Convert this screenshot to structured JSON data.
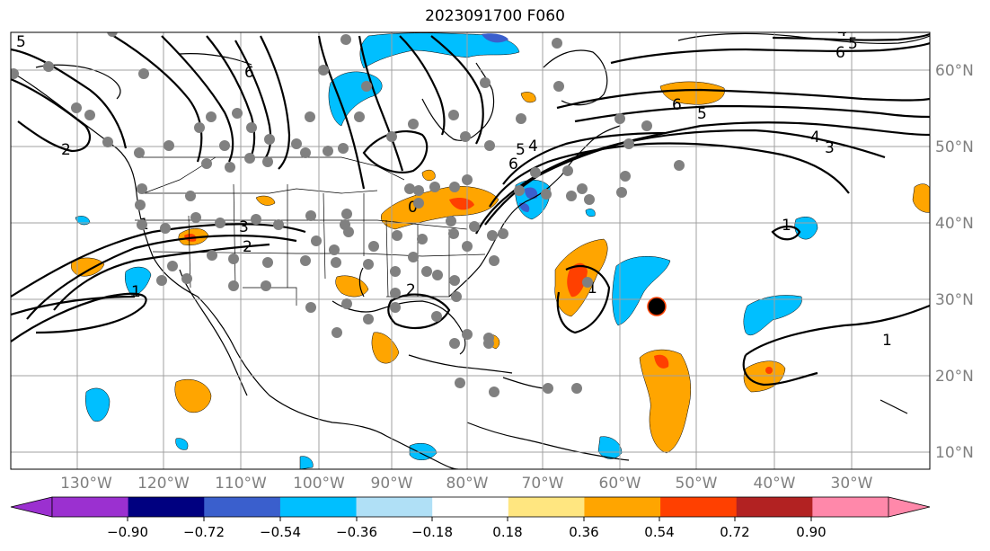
{
  "title": "2023091700 F060",
  "latitude_labels": [
    "60°N",
    "50°N",
    "40°N",
    "30°N",
    "20°N",
    "10°N"
  ],
  "longitude_labels": [
    "130°W",
    "120°W",
    "110°W",
    "100°W",
    "90°W",
    "80°W",
    "70°W",
    "60°W",
    "50°W",
    "40°W",
    "30°W"
  ],
  "colorbar": {
    "ticks": [
      "−0.90",
      "−0.72",
      "−0.54",
      "−0.36",
      "−0.18",
      "0.18",
      "0.36",
      "0.54",
      "0.72",
      "0.90"
    ],
    "colors": [
      "#9b30d0",
      "#000080",
      "#3a5fcd",
      "#00bfff",
      "#b0e0f6",
      "#ffffff",
      "#ffe680",
      "#ffa500",
      "#ff4000",
      "#b22222",
      "#ff88aa"
    ]
  },
  "contour_labels": [
    "5",
    "6",
    "2",
    "1",
    "3",
    "2",
    "1",
    "4",
    "5",
    "6",
    "6",
    "5",
    "4",
    "3",
    "1",
    "1",
    "2",
    "1",
    "0",
    "4",
    "5",
    "6"
  ],
  "colors": {
    "positive_fill": "#ffa500",
    "positive_core": "#ff4000",
    "negative_fill": "#00bfff",
    "negative_core": "#3a5fcd",
    "station": "#808080",
    "grid": "#a0a0a0"
  }
}
